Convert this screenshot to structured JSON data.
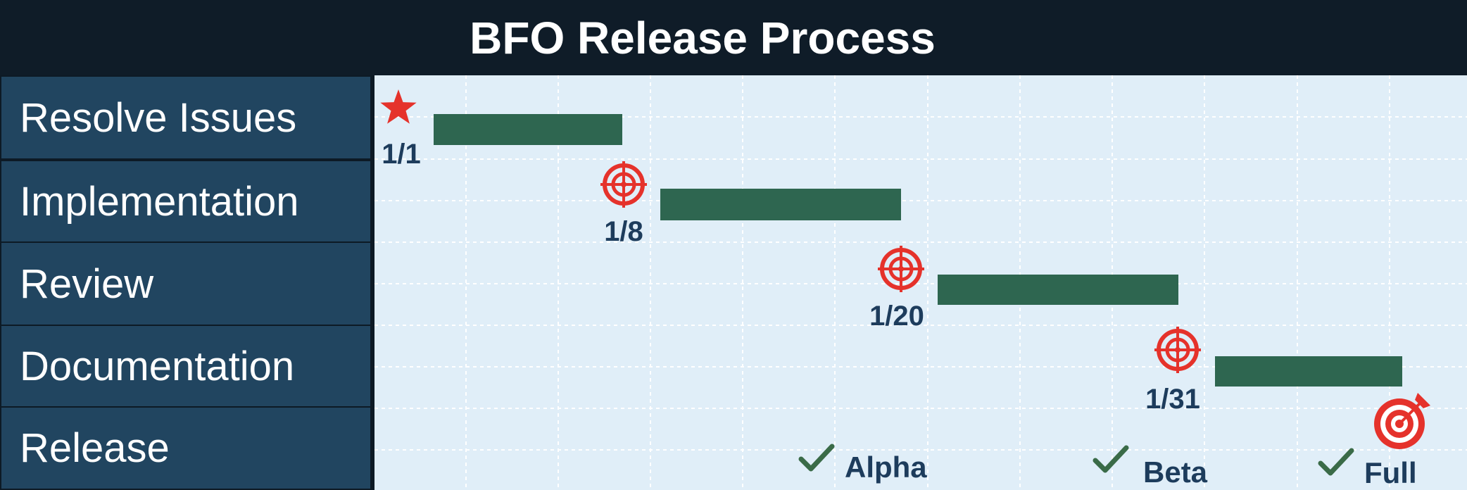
{
  "title": "BFO Release Process",
  "colors": {
    "header_bg": "#0f1c28",
    "label_bg": "#214560",
    "chart_bg": "#e0eef8",
    "bar": "#2e6650",
    "marker": "#e5322b",
    "milestone_text": "#1d3c5c",
    "check": "#3a6b48"
  },
  "rows": [
    {
      "label": "Resolve Issues"
    },
    {
      "label": "Implementation"
    },
    {
      "label": "Review"
    },
    {
      "label": "Documentation"
    },
    {
      "label": "Release"
    }
  ],
  "chart_data": {
    "type": "gantt",
    "tasks": [
      {
        "name": "Resolve Issues",
        "start": "1/1",
        "start_icon": "star-icon"
      },
      {
        "name": "Implementation",
        "start": "1/8",
        "start_icon": "target-icon"
      },
      {
        "name": "Review",
        "start": "1/20",
        "start_icon": "target-icon"
      },
      {
        "name": "Documentation",
        "start": "1/31",
        "start_icon": "target-icon"
      }
    ],
    "release_milestones": [
      {
        "label": "Alpha",
        "icon": "check-icon"
      },
      {
        "label": "Beta",
        "icon": "check-icon"
      },
      {
        "label": "Full",
        "icon": "check-icon"
      }
    ],
    "end_icon": "bullseye-arrow-icon",
    "grid": true
  }
}
